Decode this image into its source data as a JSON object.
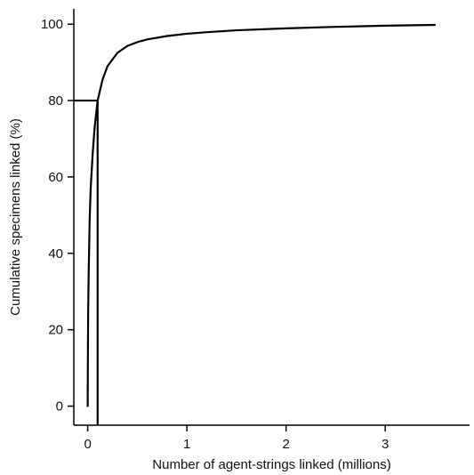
{
  "chart_data": {
    "type": "line",
    "xlabel": "Number of agent-strings linked (millions)",
    "ylabel": "Cumulative specimens linked (%)",
    "xlim": [
      -0.14,
      3.85
    ],
    "ylim": [
      -5,
      104
    ],
    "xticks": [
      0,
      1,
      2,
      3
    ],
    "yticks": [
      0,
      20,
      40,
      60,
      80,
      100
    ],
    "grid": false,
    "legend": "none",
    "line_color": "#000000",
    "series": [
      {
        "x": [
          0,
          0.002,
          0.005,
          0.01,
          0.02,
          0.03,
          0.05,
          0.07,
          0.1,
          0.15,
          0.2,
          0.3,
          0.4,
          0.5,
          0.6,
          0.8,
          1.0,
          1.2,
          1.5,
          2.0,
          2.5,
          3.0,
          3.5
        ],
        "y": [
          0,
          14,
          25,
          35,
          49,
          57,
          66,
          73,
          80,
          85.5,
          89,
          92.5,
          94.3,
          95.3,
          96.0,
          96.9,
          97.5,
          97.9,
          98.4,
          98.9,
          99.3,
          99.6,
          99.8
        ]
      }
    ],
    "reference_lines": [
      {
        "type": "horizontal",
        "y": 80,
        "x_from": -0.14,
        "x_to": 0.1
      },
      {
        "type": "vertical",
        "x": 0.1,
        "y_from": -5,
        "y_to": 80
      }
    ]
  }
}
